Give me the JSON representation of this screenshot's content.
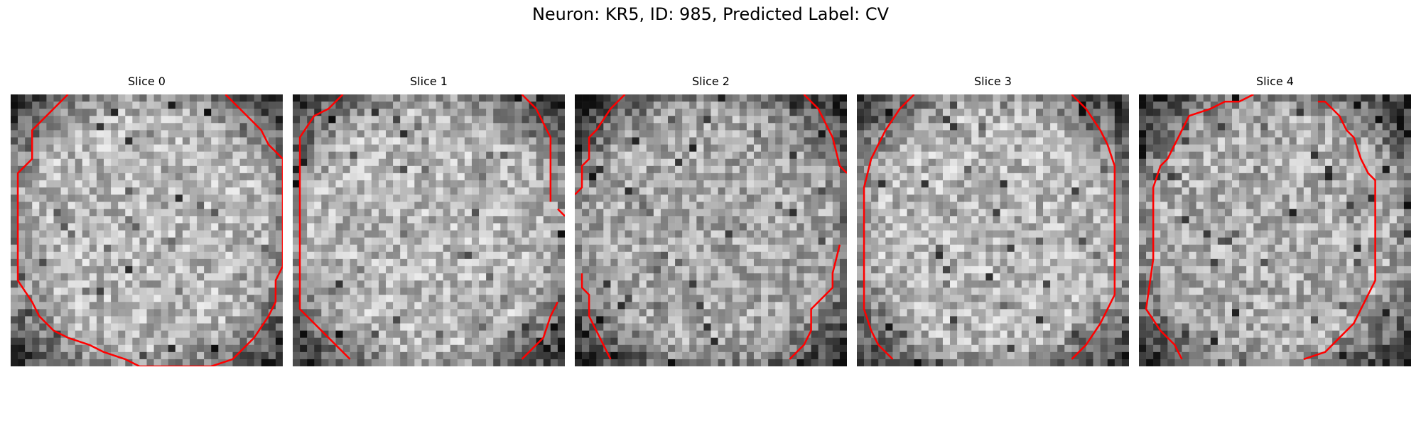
{
  "figure": {
    "suptitle": "Neuron: KR5, ID: 985, Predicted Label: CV"
  },
  "panels": [
    {
      "title": "Slice 0",
      "seed": 11,
      "darken": 0.0,
      "contour": [
        [
          [
            8,
            0
          ],
          [
            3,
            5
          ],
          [
            3,
            9
          ],
          [
            1,
            11
          ],
          [
            1,
            26
          ],
          [
            3,
            29
          ],
          [
            4,
            31
          ],
          [
            6,
            33
          ],
          [
            8,
            34
          ],
          [
            11,
            35
          ],
          [
            13,
            36
          ],
          [
            16,
            37
          ],
          [
            18,
            38
          ],
          [
            21,
            38
          ],
          [
            24,
            38
          ],
          [
            28,
            38
          ],
          [
            31,
            37
          ],
          [
            34,
            34
          ],
          [
            36,
            31
          ],
          [
            37,
            29
          ],
          [
            37,
            26
          ],
          [
            38,
            24
          ],
          [
            38,
            20
          ],
          [
            38,
            9
          ],
          [
            36,
            7
          ],
          [
            35,
            5
          ],
          [
            32,
            2
          ],
          [
            30,
            0
          ]
        ]
      ]
    },
    {
      "title": "Slice 1",
      "seed": 23,
      "darken": 0.0,
      "contour": [
        [
          [
            7,
            0
          ],
          [
            5,
            2
          ],
          [
            3,
            3
          ],
          [
            1,
            6
          ],
          [
            1,
            30
          ],
          [
            3,
            32
          ],
          [
            5,
            34
          ],
          [
            8,
            37
          ]
        ],
        [
          [
            32,
            0
          ],
          [
            34,
            2
          ],
          [
            35,
            4
          ],
          [
            36,
            6
          ],
          [
            36,
            15
          ]
        ],
        [
          [
            37,
            16
          ],
          [
            38,
            17
          ]
        ],
        [
          [
            37,
            29
          ],
          [
            36,
            31
          ],
          [
            35,
            34
          ],
          [
            32,
            37
          ]
        ]
      ]
    },
    {
      "title": "Slice 2",
      "seed": 37,
      "darken": 0.06,
      "contour": [
        [
          [
            7,
            0
          ],
          [
            5,
            2
          ],
          [
            3,
            5
          ],
          [
            2,
            6
          ],
          [
            2,
            9
          ],
          [
            1,
            10
          ],
          [
            1,
            13
          ],
          [
            0,
            14
          ]
        ],
        [
          [
            32,
            0
          ],
          [
            34,
            2
          ],
          [
            35,
            4
          ],
          [
            36,
            6
          ],
          [
            37,
            10
          ],
          [
            38,
            11
          ]
        ],
        [
          [
            1,
            25
          ],
          [
            1,
            27
          ],
          [
            2,
            28
          ],
          [
            2,
            31
          ],
          [
            3,
            33
          ],
          [
            4,
            35
          ],
          [
            5,
            37
          ]
        ],
        [
          [
            37,
            21
          ],
          [
            36,
            25
          ],
          [
            36,
            27
          ],
          [
            34,
            29
          ],
          [
            33,
            30
          ],
          [
            33,
            33
          ],
          [
            32,
            35
          ],
          [
            30,
            37
          ]
        ]
      ]
    },
    {
      "title": "Slice 3",
      "seed": 51,
      "darken": 0.0,
      "contour": [
        [
          [
            8,
            0
          ],
          [
            6,
            2
          ],
          [
            4,
            5
          ],
          [
            3,
            7
          ],
          [
            2,
            9
          ],
          [
            1,
            13
          ],
          [
            1,
            30
          ],
          [
            2,
            33
          ],
          [
            3,
            35
          ],
          [
            5,
            37
          ]
        ],
        [
          [
            30,
            0
          ],
          [
            32,
            2
          ],
          [
            34,
            5
          ],
          [
            35,
            7
          ],
          [
            36,
            10
          ],
          [
            36,
            28
          ],
          [
            35,
            30
          ],
          [
            34,
            32
          ],
          [
            32,
            35
          ],
          [
            30,
            37
          ]
        ]
      ]
    },
    {
      "title": "Slice 4",
      "seed": 67,
      "darken": 0.04,
      "contour": [
        [
          [
            16,
            0
          ],
          [
            14,
            1
          ],
          [
            12,
            1
          ],
          [
            10,
            2
          ],
          [
            7,
            3
          ],
          [
            6,
            5
          ],
          [
            5,
            7
          ],
          [
            4,
            9
          ],
          [
            3,
            10
          ],
          [
            2,
            13
          ],
          [
            2,
            23
          ],
          [
            1,
            30
          ],
          [
            3,
            33
          ],
          [
            5,
            35
          ],
          [
            6,
            37
          ]
        ],
        [
          [
            25,
            1
          ],
          [
            26,
            1
          ],
          [
            28,
            3
          ],
          [
            29,
            5
          ],
          [
            30,
            6
          ],
          [
            31,
            9
          ],
          [
            32,
            11
          ],
          [
            33,
            12
          ],
          [
            33,
            26
          ],
          [
            32,
            28
          ],
          [
            31,
            30
          ],
          [
            30,
            32
          ],
          [
            28,
            34
          ],
          [
            26,
            36
          ],
          [
            23,
            37
          ]
        ]
      ]
    }
  ]
}
